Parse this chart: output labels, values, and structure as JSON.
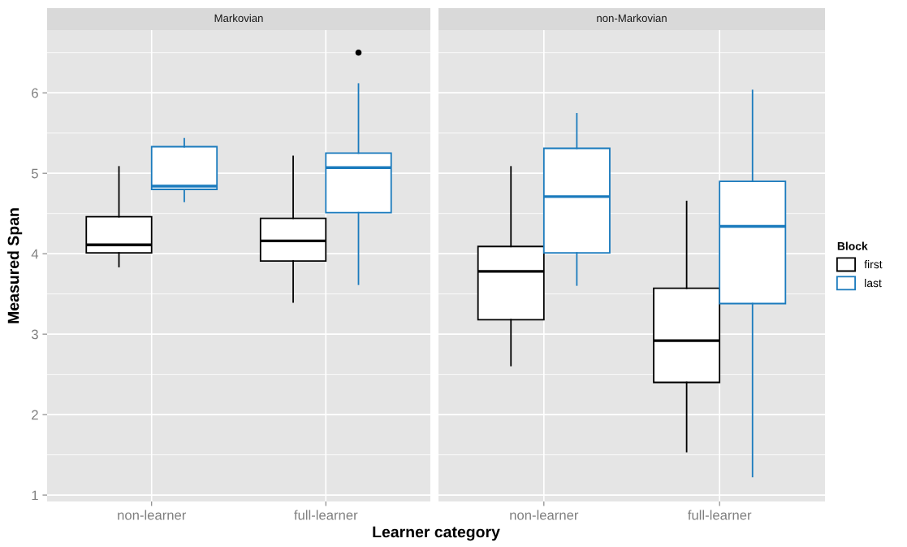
{
  "chart_data": [
    {
      "type": "box",
      "title": "Markovian",
      "ylabel": "Measured Span",
      "xlabel": "Learner category",
      "categories": [
        "non-learner",
        "full-learner"
      ],
      "ylim": [
        0.92,
        6.78
      ],
      "yticks": [
        1,
        2,
        3,
        4,
        5,
        6
      ],
      "grid": true,
      "legend": false,
      "series": [
        {
          "color": "#000000",
          "boxes": [
            {
              "low": 3.84,
              "q1": 4.01,
              "median": 4.11,
              "q3": 4.46,
              "high": 5.08
            },
            {
              "low": 3.4,
              "q1": 3.91,
              "median": 4.16,
              "q3": 4.44,
              "high": 5.21
            }
          ]
        },
        {
          "color": "#1b7bbd",
          "boxes": [
            {
              "low": 4.65,
              "q1": 4.8,
              "median": 4.84,
              "q3": 5.33,
              "high": 5.43
            },
            {
              "low": 3.62,
              "q1": 4.51,
              "median": 5.07,
              "q3": 5.25,
              "high": 6.11,
              "outliers": [
                6.5
              ]
            }
          ]
        }
      ]
    },
    {
      "type": "box",
      "title": "non-Markovian",
      "legend_title": "Block",
      "categories": [
        "non-learner",
        "full-learner"
      ],
      "ylim": [
        0.92,
        6.78
      ],
      "yticks": [
        1,
        2,
        3,
        4,
        5,
        6
      ],
      "grid": true,
      "legend": "right",
      "tick_labels": "x",
      "series": [
        {
          "name": "first",
          "color": "#000000",
          "boxes": [
            {
              "low": 2.61,
              "q1": 3.18,
              "median": 3.78,
              "q3": 4.09,
              "high": 5.08
            },
            {
              "low": 1.54,
              "q1": 2.4,
              "median": 2.92,
              "q3": 3.57,
              "high": 4.65
            }
          ]
        },
        {
          "name": "last",
          "color": "#1b7bbd",
          "boxes": [
            {
              "low": 3.61,
              "q1": 4.01,
              "median": 4.71,
              "q3": 5.31,
              "high": 5.74
            },
            {
              "low": 1.23,
              "q1": 3.38,
              "median": 4.34,
              "q3": 4.9,
              "high": 6.03
            }
          ]
        }
      ]
    }
  ]
}
